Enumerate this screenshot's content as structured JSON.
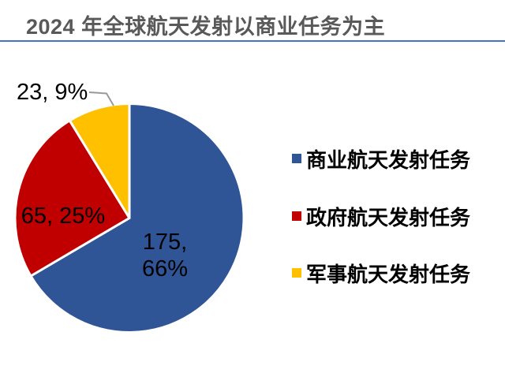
{
  "title": {
    "text": "2024 年全球航天发射以商业任务为主"
  },
  "colors": {
    "commercial_blue": "#2F5597",
    "government_red": "#C00000",
    "military_yellow": "#FFC000",
    "title_text": "#595959",
    "title_rule": "#4472C4",
    "leader_line": "#999999",
    "slice_gap_stroke": "#FFFFFF"
  },
  "chart_data": {
    "type": "pie",
    "title": "2024 年全球航天发射以商业任务为主",
    "total": 263,
    "start_angle_deg": 0,
    "direction": "clockwise",
    "legend_position": "right",
    "slices": [
      {
        "name": "商业航天发射任务",
        "value": 175,
        "percent": 66,
        "color": "#2F5597",
        "data_label": "175, 66%",
        "label_placement": "inside"
      },
      {
        "name": "政府航天发射任务",
        "value": 65,
        "percent": 25,
        "color": "#C00000",
        "data_label": "65, 25%",
        "label_placement": "inside"
      },
      {
        "name": "军事航天发射任务",
        "value": 23,
        "percent": 9,
        "color": "#FFC000",
        "data_label": "23, 9%",
        "label_placement": "outside-with-leader"
      }
    ]
  },
  "data_labels": {
    "commercial_line1": "175,",
    "commercial_line2": "66%",
    "government": "65, 25%",
    "military": "23, 9%"
  },
  "legend": {
    "items": [
      {
        "label": "商业航天发射任务",
        "color": "#2F5597"
      },
      {
        "label": "政府航天发射任务",
        "color": "#C00000"
      },
      {
        "label": "军事航天发射任务",
        "color": "#FFC000"
      }
    ]
  }
}
